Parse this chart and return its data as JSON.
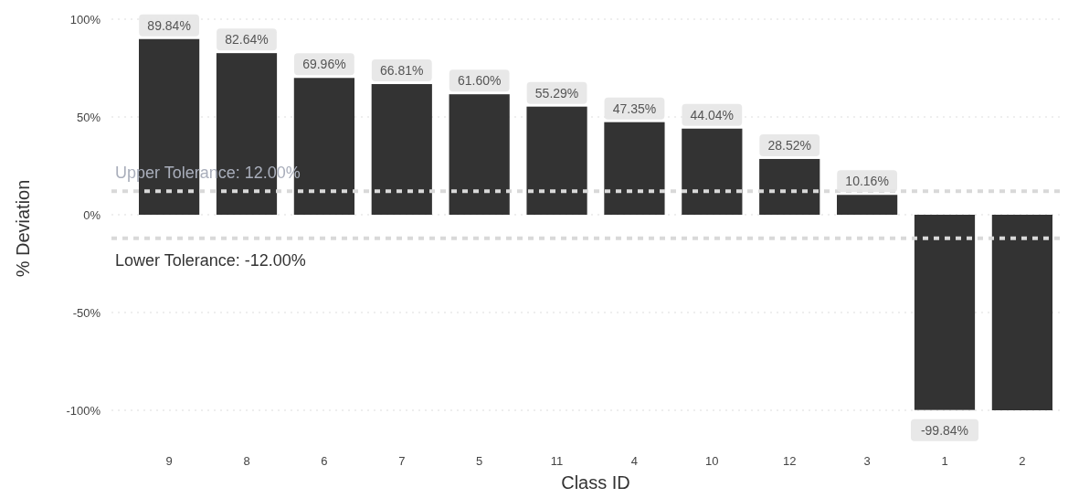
{
  "chart_data": {
    "type": "bar",
    "xlabel": "Class ID",
    "ylabel": "% Deviation",
    "categories": [
      "9",
      "8",
      "6",
      "7",
      "5",
      "11",
      "4",
      "10",
      "12",
      "3",
      "1",
      "2"
    ],
    "values": [
      89.84,
      82.64,
      69.96,
      66.81,
      61.6,
      55.29,
      47.35,
      44.04,
      28.52,
      10.16,
      -99.84,
      -100
    ],
    "value_labels": [
      "89.84%",
      "82.64%",
      "69.96%",
      "66.81%",
      "61.60%",
      "55.29%",
      "47.35%",
      "44.04%",
      "28.52%",
      "10.16%",
      "-99.84%",
      null
    ],
    "color": "#333333",
    "ylim": [
      -100,
      100
    ],
    "yticks": [
      {
        "value": -100,
        "label": "-100%"
      },
      {
        "value": -50,
        "label": "-50%"
      },
      {
        "value": 0,
        "label": "0%"
      },
      {
        "value": 50,
        "label": "50%"
      },
      {
        "value": 100,
        "label": "100%"
      }
    ],
    "grid": "y",
    "ref_lines": [
      {
        "axis": "y",
        "value": 12,
        "label": "Upper Tolerance: 12.00%",
        "color": "#d9d9d9",
        "line_style": "dashed"
      },
      {
        "axis": "y",
        "value": -12,
        "label": "Lower Tolerance: -12.00%",
        "color": "#d9d9d9",
        "line_style": "dashed"
      }
    ]
  }
}
